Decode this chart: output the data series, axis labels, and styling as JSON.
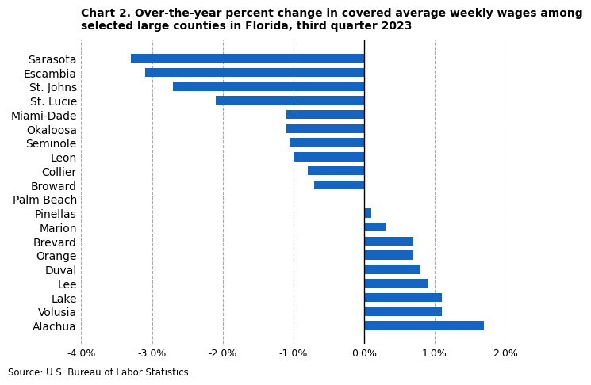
{
  "title_line1": "Chart 2. Over-the-year percent change in covered average weekly wages among",
  "title_line2": "selected large counties in Florida, third quarter 2023",
  "counties": [
    "Sarasota",
    "Escambia",
    "St. Johns",
    "St. Lucie",
    "Miami-Dade",
    "Okaloosa",
    "Seminole",
    "Leon",
    "Collier",
    "Broward",
    "Palm Beach",
    "Pinellas",
    "Marion",
    "Brevard",
    "Orange",
    "Duval",
    "Lee",
    "Lake",
    "Volusia",
    "Alachua"
  ],
  "values": [
    -3.3,
    -3.1,
    -2.7,
    -2.1,
    -1.1,
    -1.1,
    -1.05,
    -1.0,
    -0.8,
    -0.7,
    0.0,
    0.1,
    0.3,
    0.7,
    0.7,
    0.8,
    0.9,
    1.1,
    1.1,
    1.7
  ],
  "bar_color": "#1565C0",
  "xlim": [
    -4.0,
    2.0
  ],
  "xticks": [
    -4.0,
    -3.0,
    -2.0,
    -1.0,
    0.0,
    1.0,
    2.0
  ],
  "xtick_labels": [
    "-4.0%",
    "-3.0%",
    "-2.0%",
    "-1.0%",
    "0.0%",
    "1.0%",
    "2.0%"
  ],
  "source": "Source: U.S. Bureau of Labor Statistics.",
  "grid_color": "#aaaaaa",
  "background_color": "#ffffff"
}
